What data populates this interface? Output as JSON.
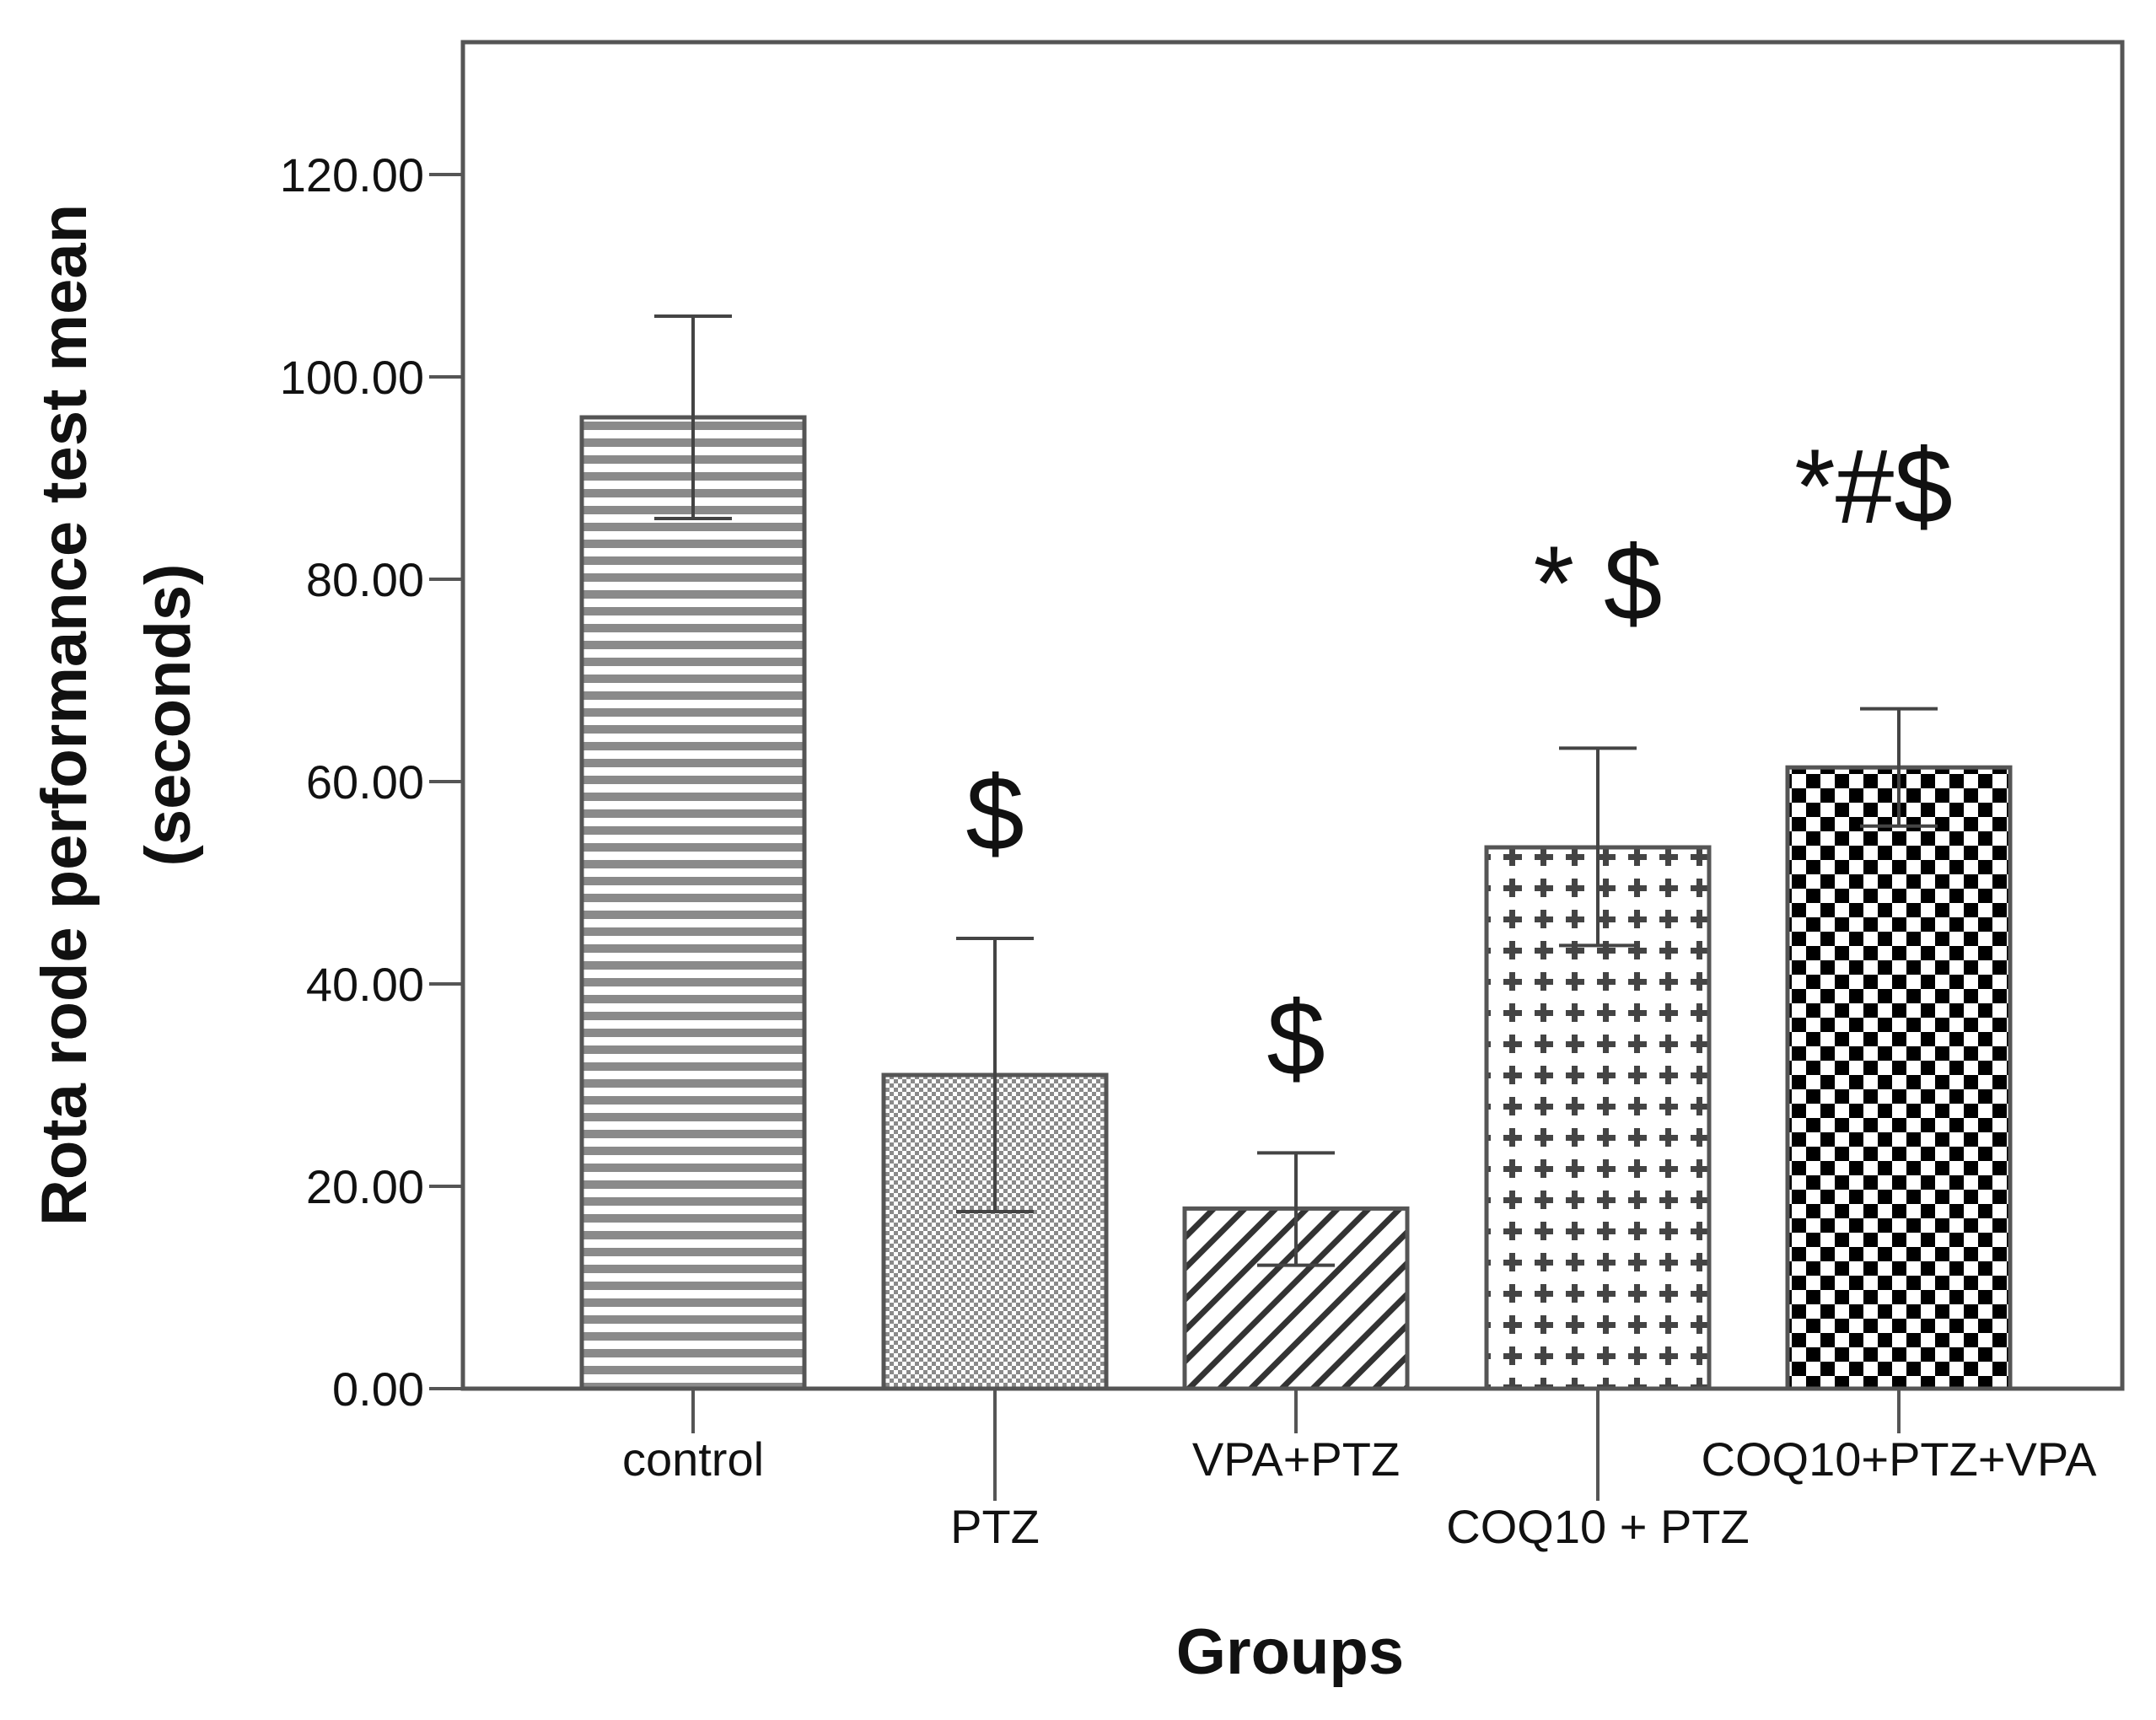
{
  "chart_data": {
    "type": "bar",
    "title": "",
    "xlabel": "Groups",
    "ylabel": [
      "Rota rode performance test mean",
      "(seconds)"
    ],
    "ylim": [
      0,
      133
    ],
    "yticks": [
      0,
      20,
      40,
      60,
      80,
      100,
      120
    ],
    "ytick_labels": [
      "0.00",
      "20.00",
      "40.00",
      "60.00",
      "80.00",
      "100.00",
      "120.00"
    ],
    "categories": [
      "control",
      "PTZ",
      "VPA+PTZ",
      "COQ10 + PTZ",
      "COQ10+PTZ+VPA"
    ],
    "values": [
      96.0,
      31.0,
      17.8,
      53.5,
      61.4
    ],
    "error_bars": [
      [
        86.0,
        106.0
      ],
      [
        17.5,
        44.5
      ],
      [
        12.2,
        23.3
      ],
      [
        43.8,
        63.3
      ],
      [
        55.6,
        67.2
      ]
    ],
    "annotations": [
      "",
      "$",
      "$",
      "* $",
      "*#$"
    ],
    "patterns": [
      "horizontal-lines",
      "dots",
      "diagonal-lines",
      "plus",
      "checkerboard"
    ],
    "grid": false,
    "legend": false
  }
}
